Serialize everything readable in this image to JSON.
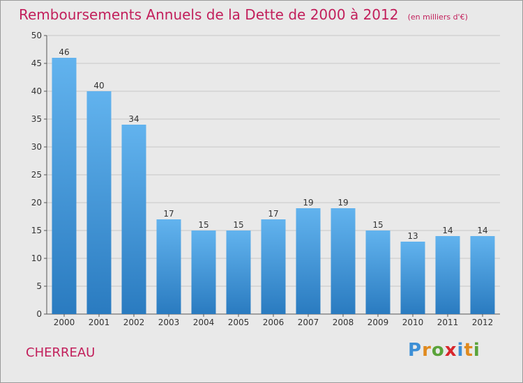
{
  "title": "Remboursements Annuels de la Dette de 2000 à 2012",
  "subtitle": "(en milliers d'€)",
  "commune": "CHERREAU",
  "logo": {
    "text": "Proxiti",
    "letter_colors": [
      "#3d8fd6",
      "#e08a1e",
      "#5aa33a",
      "#d8262c",
      "#3d8fd6",
      "#e08a1e",
      "#5aa33a"
    ]
  },
  "colors": {
    "title": "#c21f5b",
    "bar_top": "#62b3ee",
    "bar_bottom": "#2a7bc0",
    "grid": "#c8c8c8",
    "axis": "#555555",
    "background": "#e9e9e9"
  },
  "chart_data": {
    "type": "bar",
    "categories": [
      "2000",
      "2001",
      "2002",
      "2003",
      "2004",
      "2005",
      "2006",
      "2007",
      "2008",
      "2009",
      "2010",
      "2011",
      "2012"
    ],
    "values": [
      46,
      40,
      34,
      17,
      15,
      15,
      17,
      19,
      19,
      15,
      13,
      14,
      14
    ],
    "ylim": [
      0,
      50
    ],
    "yticks": [
      0,
      5,
      10,
      15,
      20,
      25,
      30,
      35,
      40,
      45,
      50
    ],
    "grid": "horizontal",
    "data_labels": true
  }
}
